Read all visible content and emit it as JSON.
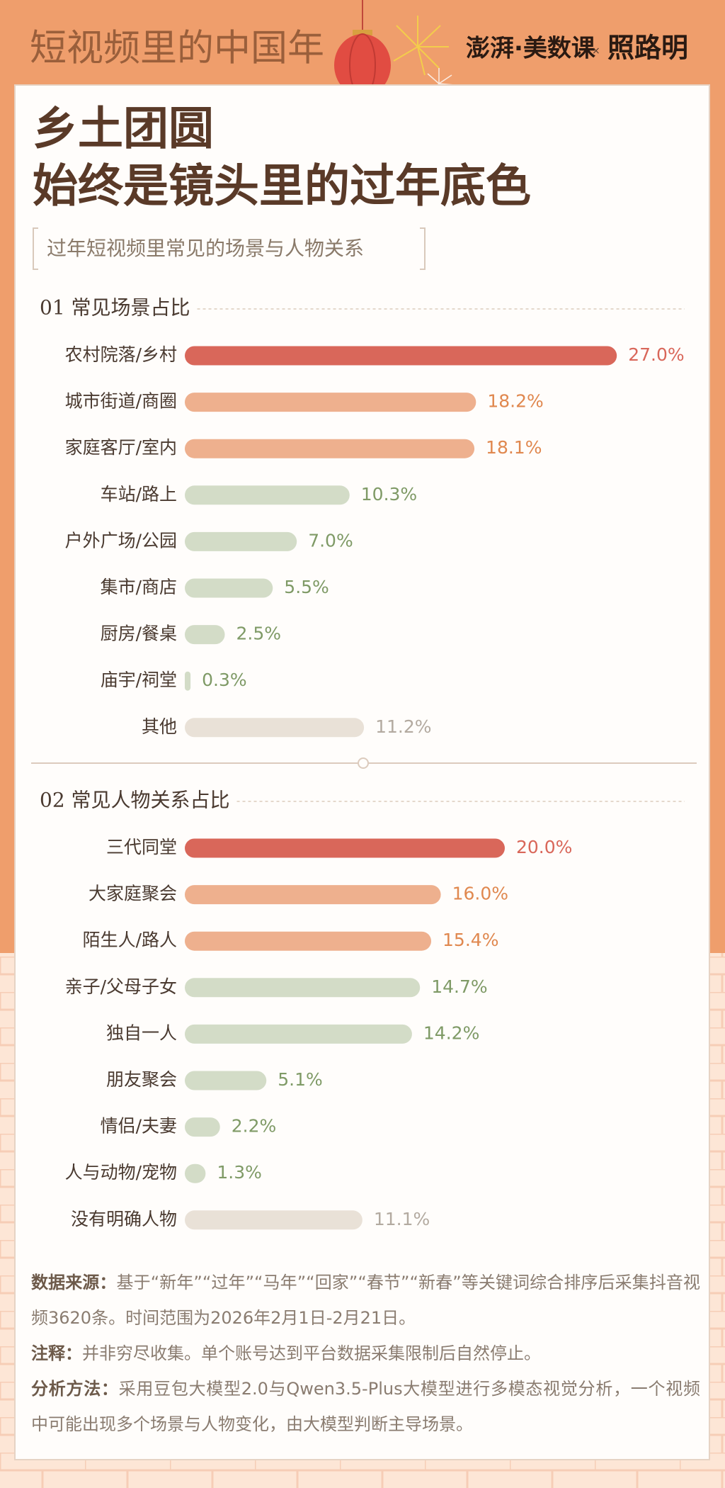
{
  "header": {
    "series_title": "短视频里的中国年",
    "brand1": "澎湃·美数课",
    "brand_sep": "×",
    "brand2": "照路明"
  },
  "title_lines": [
    "乡土团圆",
    "始终是镜头里的过年底色"
  ],
  "subtitle": "过年短视频里常见的场景与人物关系",
  "chart_data": [
    {
      "type": "bar",
      "orientation": "horizontal",
      "title": "01 常见场景占比",
      "categories": [
        "农村院落/乡村",
        "城市街道/商圈",
        "家庭客厅/室内",
        "车站/路上",
        "户外广场/公园",
        "集市/商店",
        "厨房/餐桌",
        "庙宇/祠堂",
        "其他"
      ],
      "values": [
        27.0,
        18.2,
        18.1,
        10.3,
        7.0,
        5.5,
        2.5,
        0.3,
        11.2
      ],
      "value_labels": [
        "27.0%",
        "18.2%",
        "18.1%",
        "10.3%",
        "7.0%",
        "5.5%",
        "2.5%",
        "0.3%",
        "11.2%"
      ],
      "colors": [
        "#d9675a",
        "#eeb08e",
        "#eeb08e",
        "#d3dcc7",
        "#d3dcc7",
        "#d3dcc7",
        "#d3dcc7",
        "#d3dcc7",
        "#e9e1d7"
      ],
      "label_colors": [
        "#d9675a",
        "#e0884f",
        "#e0884f",
        "#7f9a66",
        "#7f9a66",
        "#7f9a66",
        "#7f9a66",
        "#7f9a66",
        "#b3aaa0"
      ]
    },
    {
      "type": "bar",
      "orientation": "horizontal",
      "title": "02 常见人物关系占比",
      "categories": [
        "三代同堂",
        "大家庭聚会",
        "陌生人/路人",
        "亲子/父母子女",
        "独自一人",
        "朋友聚会",
        "情侣/夫妻",
        "人与动物/宠物",
        "没有明确人物"
      ],
      "values": [
        20.0,
        16.0,
        15.4,
        14.7,
        14.2,
        5.1,
        2.2,
        1.3,
        11.1
      ],
      "value_labels": [
        "20.0%",
        "16.0%",
        "15.4%",
        "14.7%",
        "14.2%",
        "5.1%",
        "2.2%",
        "1.3%",
        "11.1%"
      ],
      "colors": [
        "#d9675a",
        "#eeb08e",
        "#eeb08e",
        "#d3dcc7",
        "#d3dcc7",
        "#d3dcc7",
        "#d3dcc7",
        "#d3dcc7",
        "#e9e1d7"
      ],
      "label_colors": [
        "#d9675a",
        "#e0884f",
        "#e0884f",
        "#7f9a66",
        "#7f9a66",
        "#7f9a66",
        "#7f9a66",
        "#7f9a66",
        "#b3aaa0"
      ]
    }
  ],
  "notes": [
    {
      "label": "数据来源：",
      "text": "基于“新年”“过年”“马年”“回家”“春节”“新春”等关键词综合排序后采集抖音视频3620条。时间范围为2026年2月1日-2月21日。"
    },
    {
      "label": "注释：",
      "text": "并非穷尽收集。单个账号达到平台数据采集限制后自然停止。"
    },
    {
      "label": "分析方法：",
      "text": "采用豆包大模型2.0与Qwen3.5-Plus大模型进行多模态视觉分析，一个视频中可能出现多个场景与人物变化，由大模型判断主导场景。"
    }
  ]
}
